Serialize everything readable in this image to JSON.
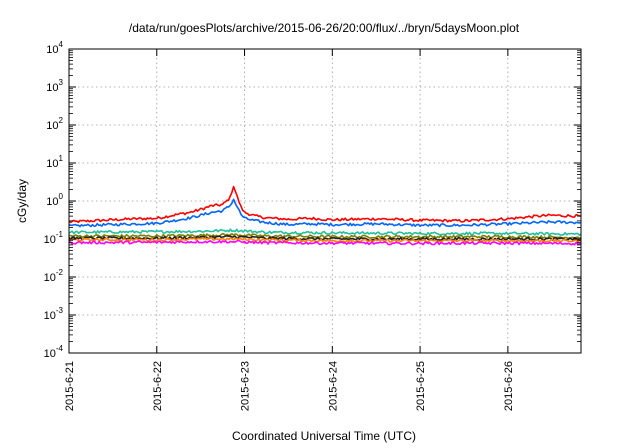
{
  "chart_data": {
    "type": "line",
    "title": "/data/run/goesPlots/archive/2015-06-26/20:00/flux/../bryn/5daysMoon.plot",
    "xlabel": "Coordinated Universal Time (UTC)",
    "ylabel": "cGy/day",
    "y_scale": "log",
    "ylim": [
      0.0001,
      10000
    ],
    "xlim": [
      "2015-06-21",
      "2015-06-26 20:00"
    ],
    "grid": true,
    "x_ticks": [
      "2015-6-21",
      "2015-6-22",
      "2015-6-23",
      "2015-6-24",
      "2015-6-25",
      "2015-6-26"
    ],
    "y_ticks": [
      {
        "value": 0.0001,
        "base": "10",
        "exp": "-4"
      },
      {
        "value": 0.001,
        "base": "10",
        "exp": "-3"
      },
      {
        "value": 0.01,
        "base": "10",
        "exp": "-2"
      },
      {
        "value": 0.1,
        "base": "10",
        "exp": "-1"
      },
      {
        "value": 1,
        "base": "10",
        "exp": "0"
      },
      {
        "value": 10,
        "base": "10",
        "exp": "1"
      },
      {
        "value": 100,
        "base": "10",
        "exp": "2"
      },
      {
        "value": 1000,
        "base": "10",
        "exp": "3"
      },
      {
        "value": 10000,
        "base": "10",
        "exp": "4"
      }
    ],
    "series": [
      {
        "color": "#ff0000",
        "x": [
          "2015-06-21 00:00",
          "2015-06-21 06:00",
          "2015-06-21 12:00",
          "2015-06-21 18:00",
          "2015-06-22 00:00",
          "2015-06-22 06:00",
          "2015-06-22 09:00",
          "2015-06-22 12:00",
          "2015-06-22 15:00",
          "2015-06-22 18:00",
          "2015-06-22 20:00",
          "2015-06-22 21:00",
          "2015-06-22 22:00",
          "2015-06-22 23:00",
          "2015-06-23 00:00",
          "2015-06-23 03:00",
          "2015-06-23 06:00",
          "2015-06-23 12:00",
          "2015-06-23 18:00",
          "2015-06-24 00:00",
          "2015-06-24 12:00",
          "2015-06-25 00:00",
          "2015-06-25 12:00",
          "2015-06-26 00:00",
          "2015-06-26 08:00",
          "2015-06-26 12:00",
          "2015-06-26 20:00"
        ],
        "y": [
          0.28,
          0.3,
          0.32,
          0.34,
          0.35,
          0.45,
          0.5,
          0.6,
          0.75,
          0.8,
          1.2,
          2.5,
          1.3,
          0.7,
          0.5,
          0.4,
          0.36,
          0.33,
          0.35,
          0.32,
          0.34,
          0.31,
          0.3,
          0.34,
          0.4,
          0.42,
          0.4
        ]
      },
      {
        "color": "#0066ff",
        "x": [
          "2015-06-21 00:00",
          "2015-06-21 06:00",
          "2015-06-21 12:00",
          "2015-06-21 18:00",
          "2015-06-22 00:00",
          "2015-06-22 06:00",
          "2015-06-22 09:00",
          "2015-06-22 12:00",
          "2015-06-22 15:00",
          "2015-06-22 18:00",
          "2015-06-22 20:00",
          "2015-06-22 21:00",
          "2015-06-22 22:00",
          "2015-06-22 23:00",
          "2015-06-23 00:00",
          "2015-06-23 03:00",
          "2015-06-23 06:00",
          "2015-06-23 12:00",
          "2015-06-23 18:00",
          "2015-06-24 00:00",
          "2015-06-24 12:00",
          "2015-06-25 00:00",
          "2015-06-25 12:00",
          "2015-06-26 00:00",
          "2015-06-26 08:00",
          "2015-06-26 12:00",
          "2015-06-26 20:00"
        ],
        "y": [
          0.22,
          0.23,
          0.24,
          0.25,
          0.26,
          0.32,
          0.36,
          0.42,
          0.5,
          0.55,
          0.75,
          1.1,
          0.7,
          0.45,
          0.35,
          0.3,
          0.27,
          0.24,
          0.25,
          0.24,
          0.25,
          0.23,
          0.23,
          0.25,
          0.27,
          0.28,
          0.27
        ]
      },
      {
        "color": "#20c0a0",
        "x": [
          "2015-06-21 00:00",
          "2015-06-22 00:00",
          "2015-06-22 12:00",
          "2015-06-22 21:00",
          "2015-06-23 06:00",
          "2015-06-24 00:00",
          "2015-06-25 00:00",
          "2015-06-26 00:00",
          "2015-06-26 20:00"
        ],
        "y": [
          0.15,
          0.155,
          0.16,
          0.17,
          0.15,
          0.145,
          0.14,
          0.14,
          0.135
        ]
      },
      {
        "color": "#808000",
        "x": [
          "2015-06-21 00:00",
          "2015-06-22 00:00",
          "2015-06-22 12:00",
          "2015-06-22 21:00",
          "2015-06-23 06:00",
          "2015-06-24 00:00",
          "2015-06-25 00:00",
          "2015-06-26 00:00",
          "2015-06-26 20:00"
        ],
        "y": [
          0.12,
          0.12,
          0.125,
          0.13,
          0.12,
          0.115,
          0.115,
          0.115,
          0.11
        ]
      },
      {
        "color": "#202020",
        "x": [
          "2015-06-21 00:00",
          "2015-06-22 00:00",
          "2015-06-22 12:00",
          "2015-06-22 21:00",
          "2015-06-23 06:00",
          "2015-06-24 00:00",
          "2015-06-25 00:00",
          "2015-06-26 00:00",
          "2015-06-26 20:00"
        ],
        "y": [
          0.105,
          0.105,
          0.11,
          0.115,
          0.105,
          0.1,
          0.1,
          0.1,
          0.1
        ]
      },
      {
        "color": "#ff8000",
        "x": [
          "2015-06-21 00:00",
          "2015-06-22 00:00",
          "2015-06-22 12:00",
          "2015-06-22 21:00",
          "2015-06-23 06:00",
          "2015-06-24 00:00",
          "2015-06-25 00:00",
          "2015-06-26 00:00",
          "2015-06-26 20:00"
        ],
        "y": [
          0.095,
          0.095,
          0.1,
          0.1,
          0.095,
          0.09,
          0.09,
          0.09,
          0.09
        ]
      },
      {
        "color": "#ff00ff",
        "x": [
          "2015-06-21 00:00",
          "2015-06-22 00:00",
          "2015-06-22 12:00",
          "2015-06-22 21:00",
          "2015-06-23 06:00",
          "2015-06-24 00:00",
          "2015-06-25 00:00",
          "2015-06-26 00:00",
          "2015-06-26 20:00"
        ],
        "y": [
          0.08,
          0.082,
          0.085,
          0.085,
          0.08,
          0.078,
          0.077,
          0.078,
          0.076
        ]
      }
    ]
  }
}
